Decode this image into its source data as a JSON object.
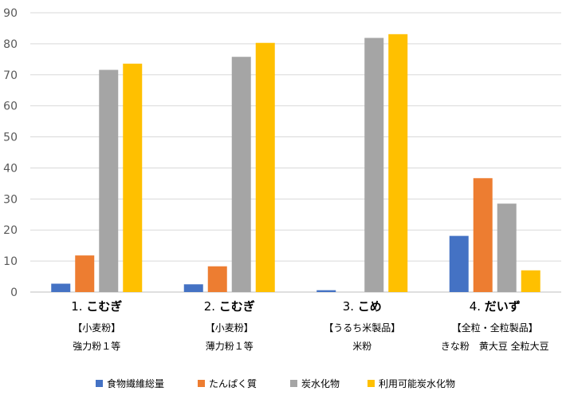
{
  "chart_data": {
    "type": "bar",
    "ylim": [
      0,
      90
    ],
    "yticks": [
      0,
      10,
      20,
      30,
      40,
      50,
      60,
      70,
      80,
      90
    ],
    "grid": true,
    "legend_position": "bottom",
    "categories": [
      {
        "number": "1.",
        "name": "こむぎ",
        "sub1": "【小麦粉】",
        "sub2": "強力粉１等"
      },
      {
        "number": "2.",
        "name": "こむぎ",
        "sub1": "【小麦粉】",
        "sub2": "薄力粉１等"
      },
      {
        "number": "3.",
        "name": "こめ",
        "sub1": "【うるち米製品】",
        "sub2": "米粉"
      },
      {
        "number": "4.",
        "name": "だいず",
        "sub1": "【全粒・全粒製品】",
        "sub2": "きな粉　黄大豆 全粒大豆"
      }
    ],
    "series": [
      {
        "name": "食物繊維総量",
        "color": "#4472C4",
        "values": [
          2.7,
          2.5,
          0.6,
          18.1
        ]
      },
      {
        "name": "たんぱく質",
        "color": "#ED7D31",
        "values": [
          11.8,
          8.3,
          0,
          36.7
        ]
      },
      {
        "name": "炭水化物",
        "color": "#A5A5A5",
        "values": [
          71.6,
          75.8,
          81.9,
          28.5
        ]
      },
      {
        "name": "利用可能炭水化物",
        "color": "#FFC000",
        "values": [
          73.6,
          80.3,
          83.1,
          7.0
        ]
      }
    ]
  }
}
